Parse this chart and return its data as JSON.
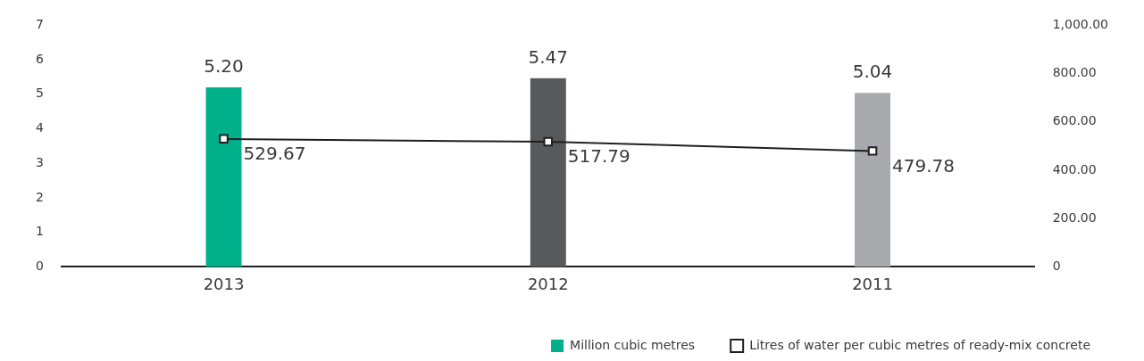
{
  "chart_data": {
    "type": "bar",
    "categories": [
      "2013",
      "2012",
      "2011"
    ],
    "series": [
      {
        "name": "Million cubic metres",
        "colors": [
          "#00b08a",
          "#58595b",
          "#a7a9ac"
        ],
        "values": [
          5.2,
          5.47,
          5.04
        ],
        "value_labels": [
          "5.20",
          "5.47",
          "5.04"
        ]
      },
      {
        "name": "Litres of water per cubic metres of ready-mix concrete",
        "type": "line",
        "axis": "y2",
        "color": "#231f20",
        "marker": "square",
        "values": [
          529.67,
          517.79,
          479.78
        ],
        "value_labels": [
          "529.67",
          "517.79",
          "479.78"
        ]
      }
    ],
    "ylim": [
      0,
      7
    ],
    "yticks": [
      0,
      1,
      2,
      3,
      4,
      5,
      6,
      7
    ],
    "y2lim": [
      0,
      1000
    ],
    "y2ticks": [
      {
        "value": 0,
        "label": "0"
      },
      {
        "value": 200,
        "label": "200.00"
      },
      {
        "value": 400,
        "label": "400.00"
      },
      {
        "value": 600,
        "label": "600.00"
      },
      {
        "value": 800,
        "label": "800.00"
      },
      {
        "value": 1000,
        "label": "1,000.00"
      }
    ],
    "grid": false,
    "legend": "bottom"
  }
}
